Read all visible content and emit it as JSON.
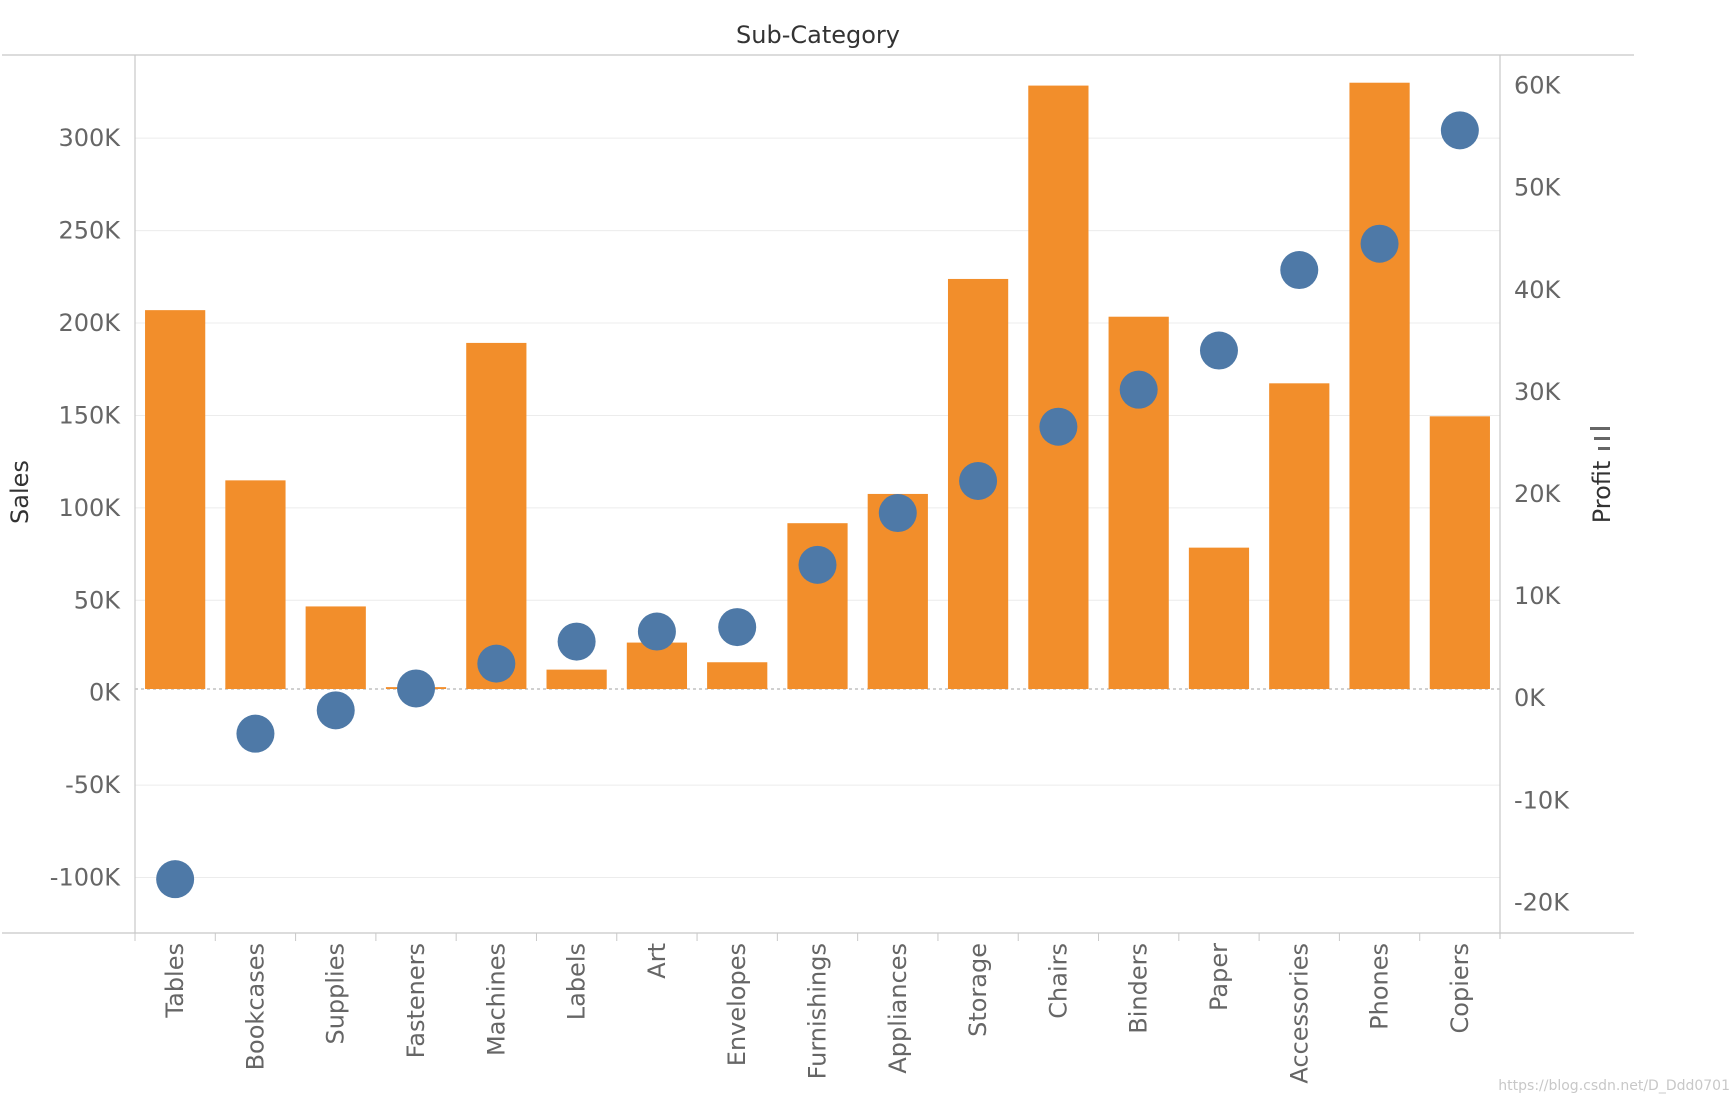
{
  "colors": {
    "bar": "#F28E2B",
    "dot": "#4E79A7",
    "grid": "#ececec",
    "axis": "#c8c8c8",
    "zero": "#b5b5b5"
  },
  "watermark": "https://blog.csdn.net/D_Ddd0701",
  "chart_data": {
    "type": "bar",
    "title": "Sub-Category",
    "xlabel": "",
    "ylabel": "Sales",
    "y2label": "Profit",
    "ylim": [
      -130000,
      345000
    ],
    "y2lim": [
      -23000,
      63000
    ],
    "yticks": [
      -100000,
      -50000,
      0,
      50000,
      100000,
      150000,
      200000,
      250000,
      300000
    ],
    "yticklabels": [
      "-100K",
      "-50K",
      "0K",
      "50K",
      "100K",
      "150K",
      "200K",
      "250K",
      "300K"
    ],
    "y2ticks": [
      -20000,
      -10000,
      0,
      10000,
      20000,
      30000,
      40000,
      50000,
      60000
    ],
    "y2ticklabels": [
      "-20K",
      "-10K",
      "0K",
      "10K",
      "20K",
      "30K",
      "40K",
      "50K",
      "60K"
    ],
    "categories": [
      "Tables",
      "Bookcases",
      "Supplies",
      "Fasteners",
      "Machines",
      "Labels",
      "Art",
      "Envelopes",
      "Furnishings",
      "Appliances",
      "Storage",
      "Chairs",
      "Binders",
      "Paper",
      "Accessories",
      "Phones",
      "Copiers"
    ],
    "series": [
      {
        "name": "Sales",
        "type": "bar",
        "axis": "left",
        "values": [
          206966,
          114880,
          46674,
          3024,
          189239,
          12486,
          27119,
          16476,
          91705,
          107532,
          223844,
          328449,
          203413,
          78479,
          167380,
          330007,
          149528
        ]
      },
      {
        "name": "Profit",
        "type": "scatter",
        "axis": "right",
        "values": [
          -17725,
          -3473,
          -1189,
          950,
          3385,
          5546,
          6528,
          6964,
          13059,
          18138,
          21279,
          26590,
          30222,
          34054,
          41937,
          44516,
          55618
        ]
      }
    ]
  }
}
